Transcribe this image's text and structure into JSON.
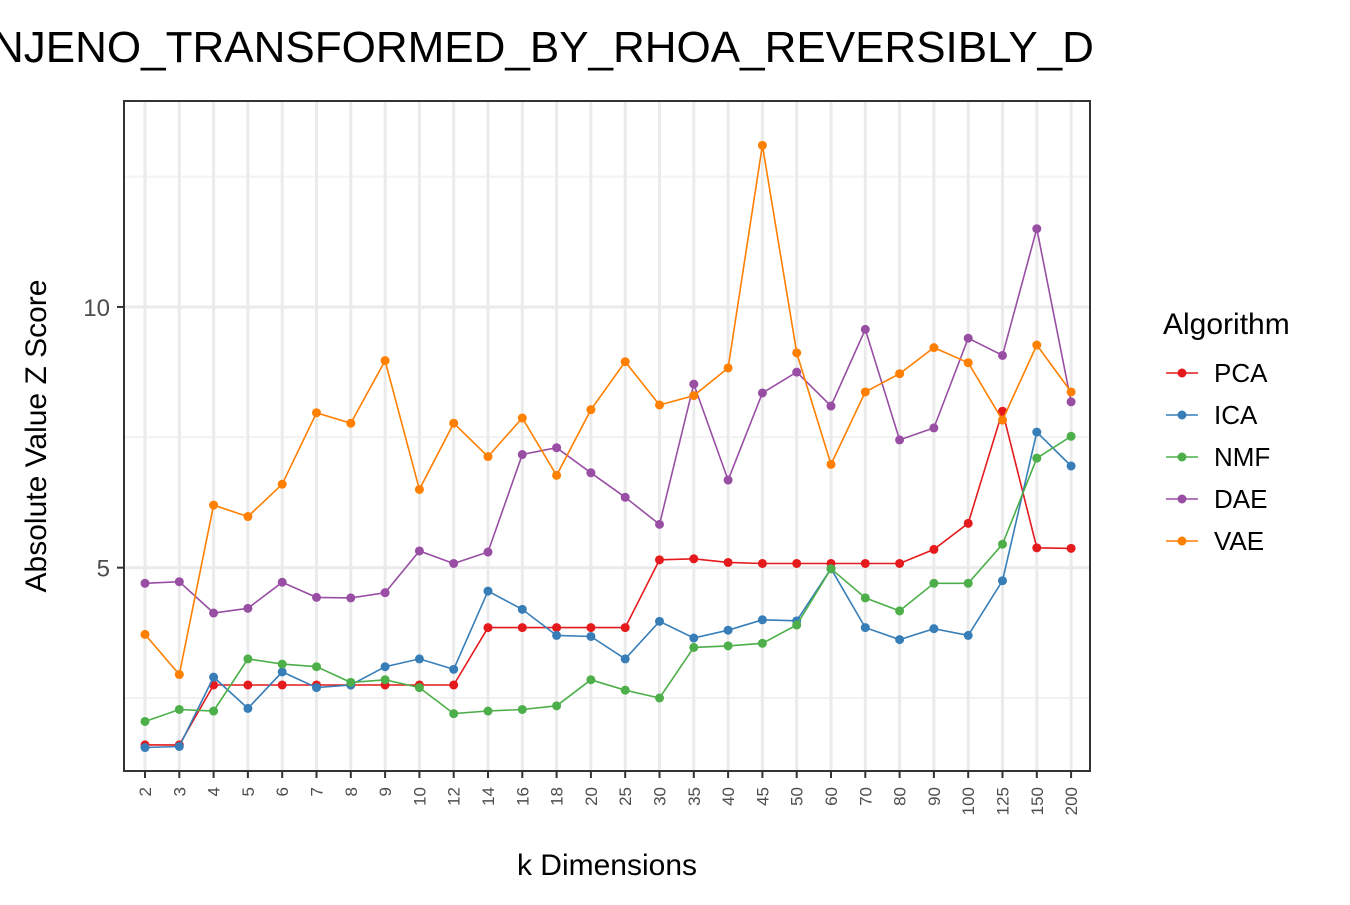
{
  "chart_data": {
    "type": "line",
    "title": "NJENO_TRANSFORMED_BY_RHOA_REVERSIBLY_D",
    "xlabel": "k Dimensions",
    "ylabel": "Absolute Value Z Score",
    "categories": [
      "2",
      "3",
      "4",
      "5",
      "6",
      "7",
      "8",
      "9",
      "10",
      "12",
      "14",
      "16",
      "18",
      "20",
      "25",
      "30",
      "35",
      "40",
      "45",
      "50",
      "60",
      "70",
      "80",
      "90",
      "100",
      "125",
      "150",
      "200"
    ],
    "y_ticks": [
      5,
      10
    ],
    "ylim": [
      1.1,
      13.95
    ],
    "grid": true,
    "legend": {
      "title": "Algorithm",
      "position": "right"
    },
    "series": [
      {
        "name": "PCA",
        "color": "#e41a1c",
        "values": [
          1.6,
          1.6,
          2.75,
          2.75,
          2.75,
          2.75,
          2.75,
          2.75,
          2.75,
          2.75,
          3.85,
          3.85,
          3.85,
          3.85,
          3.85,
          5.15,
          5.17,
          5.1,
          5.08,
          5.08,
          5.08,
          5.08,
          5.08,
          5.35,
          5.85,
          8.0,
          5.38,
          5.37
        ]
      },
      {
        "name": "ICA",
        "color": "#377eb8",
        "values": [
          1.55,
          1.57,
          2.9,
          2.3,
          3.0,
          2.7,
          2.75,
          3.1,
          3.25,
          3.05,
          4.55,
          4.2,
          3.7,
          3.68,
          3.25,
          3.97,
          3.65,
          3.8,
          4.0,
          3.98,
          4.98,
          3.85,
          3.62,
          3.83,
          3.7,
          4.75,
          7.6,
          6.95
        ]
      },
      {
        "name": "NMF",
        "color": "#4daf4a",
        "values": [
          2.05,
          2.28,
          2.25,
          3.25,
          3.15,
          3.1,
          2.8,
          2.85,
          2.7,
          2.2,
          2.25,
          2.28,
          2.35,
          2.85,
          2.65,
          2.5,
          3.47,
          3.5,
          3.55,
          3.9,
          4.98,
          4.42,
          4.17,
          4.7,
          4.7,
          5.45,
          7.1,
          7.52
        ]
      },
      {
        "name": "DAE",
        "color": "#984ea3",
        "values": [
          4.7,
          4.73,
          4.13,
          4.22,
          4.72,
          4.43,
          4.42,
          4.52,
          5.32,
          5.08,
          5.3,
          7.17,
          7.3,
          6.82,
          6.35,
          5.83,
          8.52,
          6.68,
          8.35,
          8.75,
          8.1,
          9.57,
          7.45,
          7.68,
          9.4,
          9.07,
          11.5,
          8.18
        ]
      },
      {
        "name": "VAE",
        "color": "#ff7f00",
        "values": [
          3.72,
          2.95,
          6.2,
          5.98,
          6.6,
          7.97,
          7.77,
          8.97,
          6.5,
          7.77,
          7.13,
          7.87,
          6.77,
          8.03,
          8.95,
          8.12,
          8.3,
          8.83,
          13.1,
          9.12,
          6.98,
          8.37,
          8.72,
          9.22,
          8.93,
          7.83,
          9.27,
          8.37
        ]
      }
    ]
  }
}
